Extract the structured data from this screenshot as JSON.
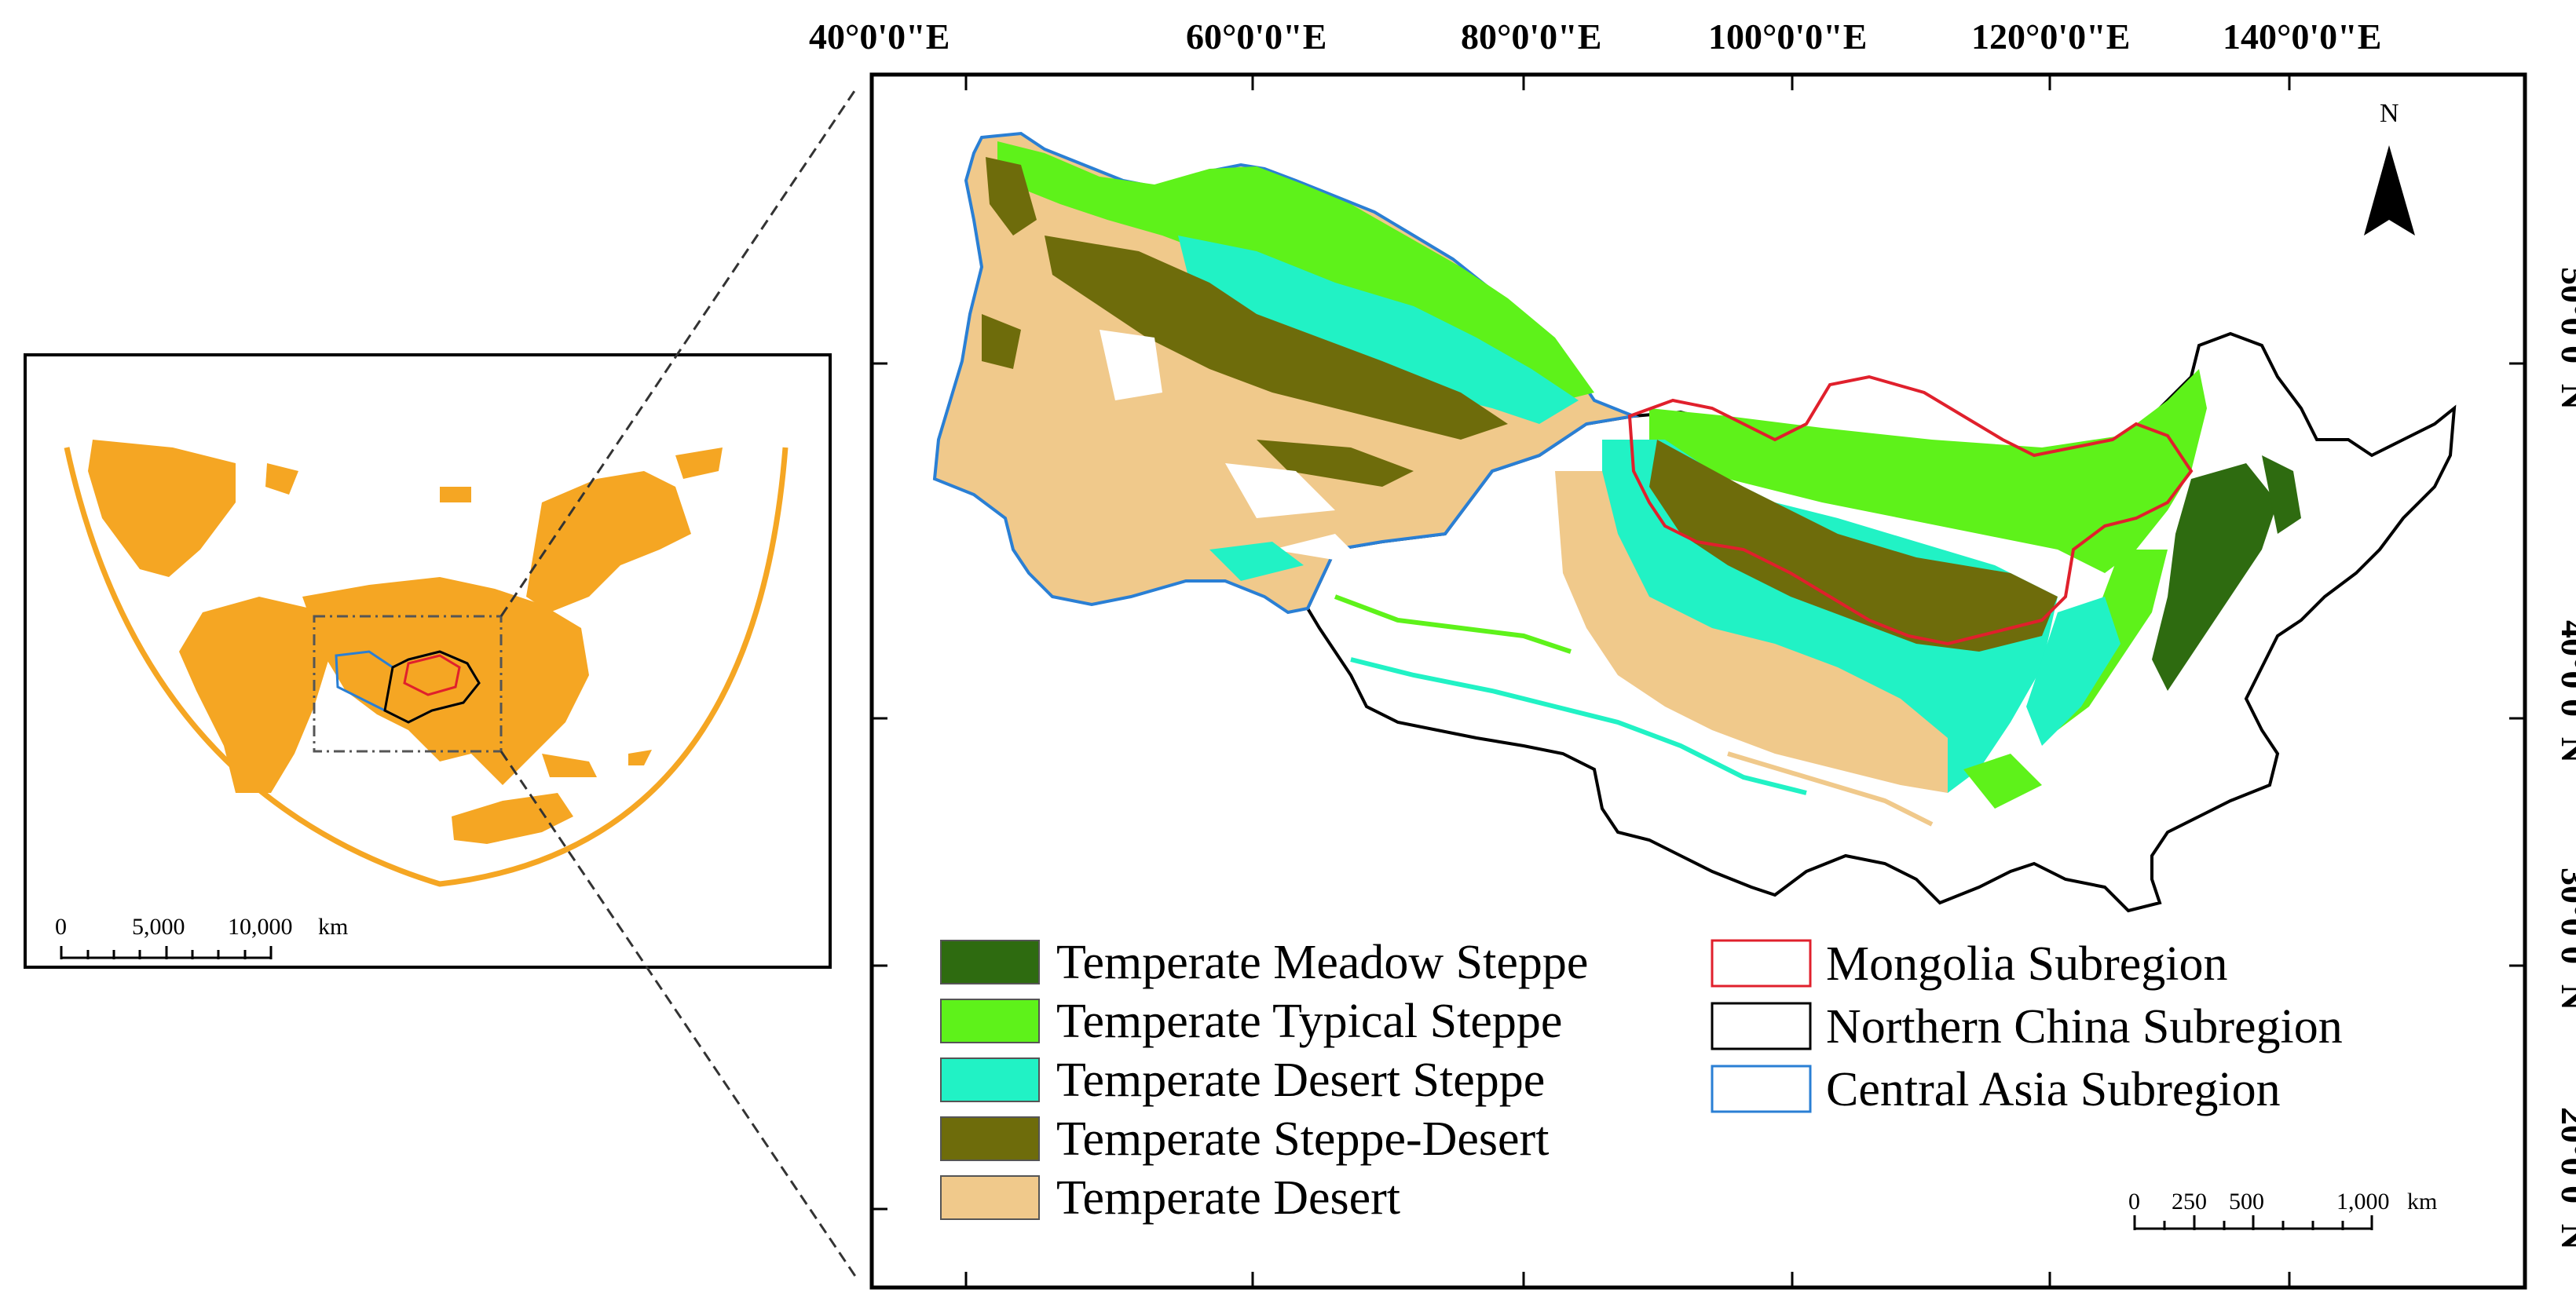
{
  "main_map": {
    "lon_ticks": [
      "40°0'0\"E",
      "60°0'0\"E",
      "80°0'0\"E",
      "100°0'0\"E",
      "120°0'0\"E",
      "140°0'0\"E"
    ],
    "lat_ticks": [
      "50°0'0\"N",
      "40°0'0\"N",
      "30°0'0\"N",
      "20°0'0\"N"
    ],
    "north_label": "N",
    "legend_vegetation": [
      {
        "label": "Temperate Meadow Steppe",
        "color": "#2e6b10"
      },
      {
        "label": "Temperate Typical Steppe",
        "color": "#5ef21a"
      },
      {
        "label": "Temperate Desert Steppe",
        "color": "#21f2c5"
      },
      {
        "label": "Temperate Steppe-Desert",
        "color": "#6e6c0b"
      },
      {
        "label": "Temperate Desert",
        "color": "#f0c98b"
      }
    ],
    "legend_subregions": [
      {
        "label": "Mongolia Subregion",
        "color": "#e0202c"
      },
      {
        "label": "Northern China Subregion",
        "color": "#000000"
      },
      {
        "label": "Central Asia Subregion",
        "color": "#2a7fd4"
      }
    ],
    "scale_bar": {
      "labels": [
        "0",
        "250",
        "500",
        "1,000"
      ],
      "unit": "km"
    }
  },
  "inset_map": {
    "land_color": "#f5a623",
    "scale_bar": {
      "labels": [
        "0",
        "5,000",
        "10,000"
      ],
      "unit": "km"
    }
  }
}
